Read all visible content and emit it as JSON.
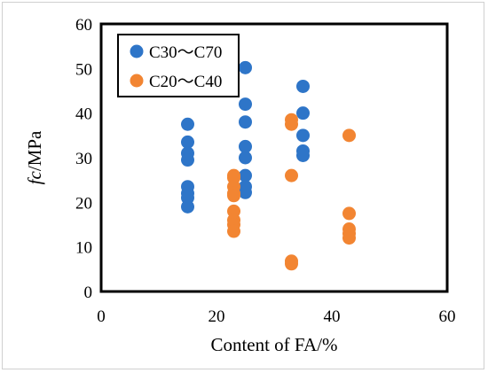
{
  "chart_data": {
    "type": "scatter",
    "xlabel": "Content of FA/%",
    "ylabel_italic": "fc",
    "ylabel_rest": "/MPa",
    "xlim": [
      0,
      60
    ],
    "ylim": [
      0,
      60
    ],
    "x_ticks": [
      0,
      20,
      40,
      60
    ],
    "y_ticks": [
      0,
      10,
      20,
      30,
      40,
      50,
      60
    ],
    "grid": false,
    "legend_position": "top-left",
    "series": [
      {
        "name": "C30～C70",
        "color": "#2E75C8",
        "points": [
          [
            15,
            37.5
          ],
          [
            15,
            33.5
          ],
          [
            15,
            31
          ],
          [
            15,
            29.5
          ],
          [
            15,
            23.5
          ],
          [
            15,
            22
          ],
          [
            15,
            21
          ],
          [
            15,
            19
          ],
          [
            25,
            50.2
          ],
          [
            25,
            42
          ],
          [
            25,
            38
          ],
          [
            25,
            32.5
          ],
          [
            25,
            30
          ],
          [
            25,
            26
          ],
          [
            25,
            23.5
          ],
          [
            25,
            22.2
          ],
          [
            35,
            46
          ],
          [
            35,
            40
          ],
          [
            35,
            35
          ],
          [
            35,
            31.5
          ],
          [
            35,
            30.5
          ]
        ]
      },
      {
        "name": "C20～C40",
        "color": "#F28532",
        "points": [
          [
            23,
            26
          ],
          [
            23,
            25.5
          ],
          [
            23,
            23.5
          ],
          [
            23,
            22
          ],
          [
            23,
            21.5
          ],
          [
            23,
            18
          ],
          [
            23,
            16
          ],
          [
            23,
            15
          ],
          [
            23,
            13.5
          ],
          [
            33,
            38.5
          ],
          [
            33,
            37.5
          ],
          [
            33,
            26
          ],
          [
            33,
            6.8
          ],
          [
            33,
            6.2
          ],
          [
            43,
            35
          ],
          [
            43,
            17.5
          ],
          [
            43,
            14
          ],
          [
            43,
            13
          ],
          [
            43,
            12
          ]
        ]
      }
    ]
  }
}
